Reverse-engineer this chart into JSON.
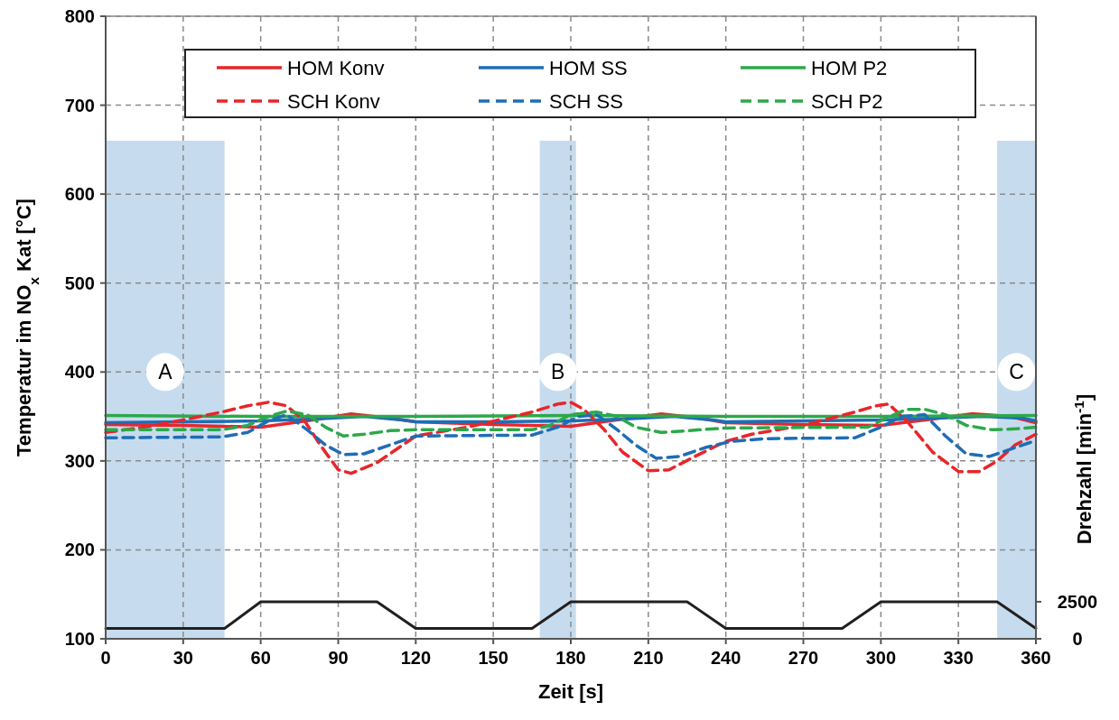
{
  "chart_data": {
    "type": "line",
    "xlabel": "Zeit [s]",
    "ylabel": "Temperatur im NO$_{x}$ Kat [°C]",
    "y2label": "Drehzahl [min$^{-1}$]",
    "xlim": [
      0,
      360
    ],
    "xticks": [
      0,
      30,
      60,
      90,
      120,
      150,
      180,
      210,
      240,
      270,
      300,
      330,
      360
    ],
    "ylim": [
      100,
      800
    ],
    "yticks": [
      100,
      200,
      300,
      400,
      500,
      600,
      700,
      800
    ],
    "y2lim": [
      0,
      42000
    ],
    "y2ticks": [
      0,
      2500
    ],
    "grid": true,
    "legend": "top",
    "line_style": "solid",
    "marker": "none",
    "bands": [
      {
        "axis": "x",
        "from": 0,
        "to": 46,
        "label": "A",
        "color": "#c6dcee"
      },
      {
        "axis": "x",
        "from": 168,
        "to": 182,
        "label": "B",
        "color": "#c6dcee"
      },
      {
        "axis": "x",
        "from": 345,
        "to": 360,
        "label": "C",
        "color": "#c6dcee"
      }
    ],
    "series": [
      {
        "name": "HOM Konv",
        "color": "#e8262a",
        "x": [
          0,
          30,
          60,
          80,
          95,
          110,
          120,
          150,
          180,
          200,
          215,
          230,
          240,
          270,
          300,
          320,
          335,
          350,
          360
        ],
        "values": [
          341,
          340,
          338,
          346,
          353,
          348,
          344,
          341,
          339,
          347,
          353,
          348,
          343,
          341,
          340,
          347,
          353,
          350,
          343
        ]
      },
      {
        "name": "HOM SS",
        "color": "#1f6db5",
        "x": [
          0,
          30,
          60,
          80,
          100,
          115,
          120,
          150,
          180,
          200,
          220,
          235,
          240,
          270,
          300,
          320,
          340,
          355,
          360
        ],
        "values": [
          343,
          344,
          345,
          347,
          350,
          346,
          344,
          344,
          345,
          347,
          350,
          346,
          344,
          345,
          346,
          348,
          350,
          348,
          345
        ]
      },
      {
        "name": "HOM P2",
        "color": "#2ca84a",
        "x": [
          0,
          60,
          120,
          180,
          240,
          300,
          360
        ],
        "values": [
          351,
          350,
          350,
          351,
          350,
          350,
          351
        ]
      },
      {
        "name": "SCH Konv",
        "color": "#e8262a",
        "line_style": "dashed",
        "x": [
          0,
          15,
          30,
          45,
          55,
          63,
          70,
          77,
          83,
          90,
          95,
          105,
          115,
          120,
          140,
          165,
          175,
          180,
          185,
          193,
          200,
          210,
          218,
          228,
          240,
          250,
          270,
          290,
          298,
          303,
          310,
          320,
          330,
          338,
          345,
          352,
          360
        ],
        "values": [
          332,
          338,
          346,
          355,
          362,
          366,
          362,
          345,
          318,
          290,
          286,
          298,
          318,
          328,
          338,
          355,
          364,
          366,
          358,
          335,
          310,
          289,
          290,
          305,
          322,
          330,
          340,
          355,
          362,
          364,
          345,
          310,
          288,
          288,
          300,
          318,
          330
        ]
      },
      {
        "name": "SCH SS",
        "color": "#1f6db5",
        "line_style": "dashed",
        "x": [
          0,
          45,
          55,
          63,
          70,
          78,
          85,
          92,
          100,
          110,
          120,
          165,
          175,
          183,
          190,
          198,
          205,
          213,
          222,
          232,
          242,
          255,
          290,
          300,
          308,
          317,
          325,
          333,
          342,
          352,
          360
        ],
        "values": [
          326,
          327,
          332,
          345,
          352,
          335,
          318,
          307,
          308,
          318,
          328,
          329,
          338,
          350,
          352,
          335,
          318,
          303,
          305,
          315,
          322,
          325,
          326,
          338,
          350,
          352,
          328,
          308,
          305,
          315,
          323
        ]
      },
      {
        "name": "SCH P2",
        "color": "#2ca84a",
        "line_style": "dashed",
        "x": [
          0,
          45,
          55,
          63,
          70,
          78,
          85,
          92,
          100,
          110,
          120,
          165,
          172,
          180,
          190,
          198,
          205,
          215,
          230,
          240,
          295,
          302,
          310,
          317,
          325,
          333,
          343,
          352,
          360
        ],
        "values": [
          335,
          335,
          340,
          350,
          356,
          352,
          338,
          328,
          330,
          334,
          335,
          335,
          340,
          352,
          355,
          350,
          338,
          332,
          335,
          337,
          338,
          348,
          358,
          358,
          352,
          340,
          335,
          336,
          338
        ]
      },
      {
        "color": "#231f20",
        "axis": "y2",
        "x": [
          0,
          46,
          60,
          105,
          120,
          165,
          180,
          225,
          240,
          285,
          300,
          345,
          360
        ],
        "values": [
          700,
          700,
          2500,
          2500,
          700,
          700,
          2500,
          2500,
          700,
          700,
          2500,
          2500,
          700
        ]
      }
    ]
  }
}
